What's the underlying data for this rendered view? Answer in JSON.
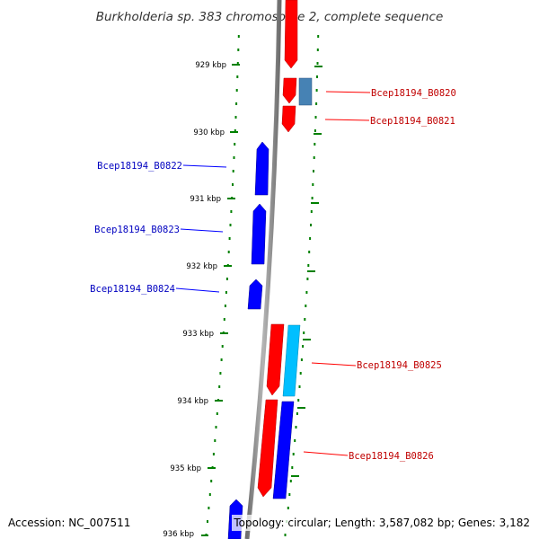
{
  "header": {
    "title": "Burkholderia sp. 383 chromosome 2, complete sequence"
  },
  "footer": {
    "accession": "Accession: NC_007511",
    "topology": "Topology: circular; Length: 3,587,082 bp; Genes: 3,182"
  },
  "ticks": {
    "labels": [
      "929 kbp",
      "930 kbp",
      "931 kbp",
      "932 kbp",
      "933 kbp",
      "934 kbp",
      "935 kbp",
      "936 kbp"
    ]
  },
  "colors": {
    "forward_gene": "#ff0000",
    "reverse_gene": "#0000ff",
    "forward_feature": "#00bfff",
    "reverse_feature": "#4682b4",
    "backbone": "#888888",
    "tick": "#008000",
    "forward_label": "#c00000",
    "reverse_label": "#0000c0"
  },
  "genes": [
    {
      "label": "Bcep18194_B0820",
      "strand": "forward"
    },
    {
      "label": "Bcep18194_B0821",
      "strand": "forward"
    },
    {
      "label": "Bcep18194_B0822",
      "strand": "reverse"
    },
    {
      "label": "Bcep18194_B0823",
      "strand": "reverse"
    },
    {
      "label": "Bcep18194_B0824",
      "strand": "reverse"
    },
    {
      "label": "Bcep18194_B0825",
      "strand": "forward"
    },
    {
      "label": "Bcep18194_B0826",
      "strand": "forward"
    }
  ]
}
